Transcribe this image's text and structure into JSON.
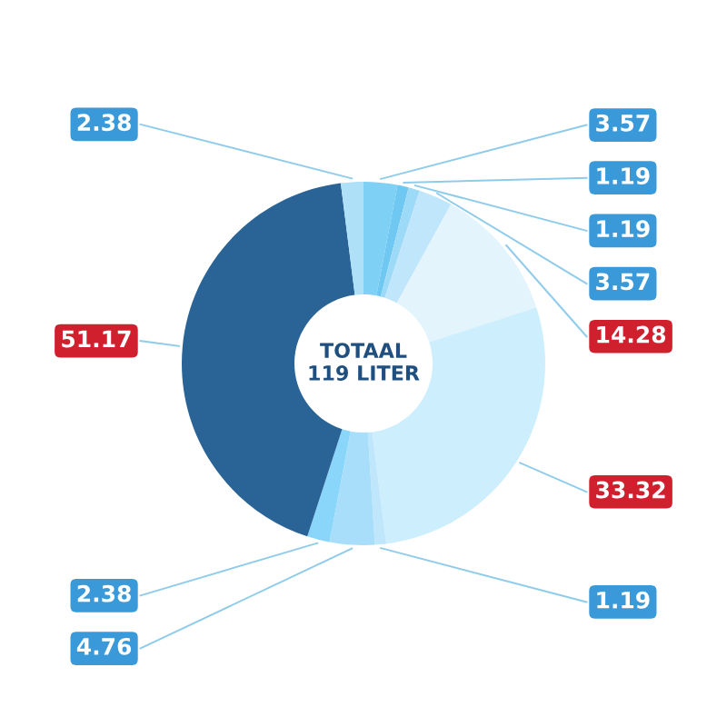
{
  "chart_data": {
    "type": "donut",
    "categories": [
      null,
      null,
      null,
      null,
      null,
      null,
      null,
      null,
      null,
      null,
      null
    ],
    "values": [
      3.57,
      1.19,
      1.19,
      3.57,
      14.28,
      33.32,
      1.19,
      4.76,
      2.38,
      51.17,
      2.38
    ],
    "colors": [
      "#7fd0f5",
      "#6ec8f2",
      "#9ddaf7",
      "#bfe6fa",
      "#e3f4fd",
      "#cdeefc",
      "#bfe6fa",
      "#a8defa",
      "#8ad6fa",
      "#2a6497",
      "#aee0f8"
    ],
    "data_labels": true,
    "annotations": [
      "TOTAAL\n119 LITER"
    ]
  }
}
